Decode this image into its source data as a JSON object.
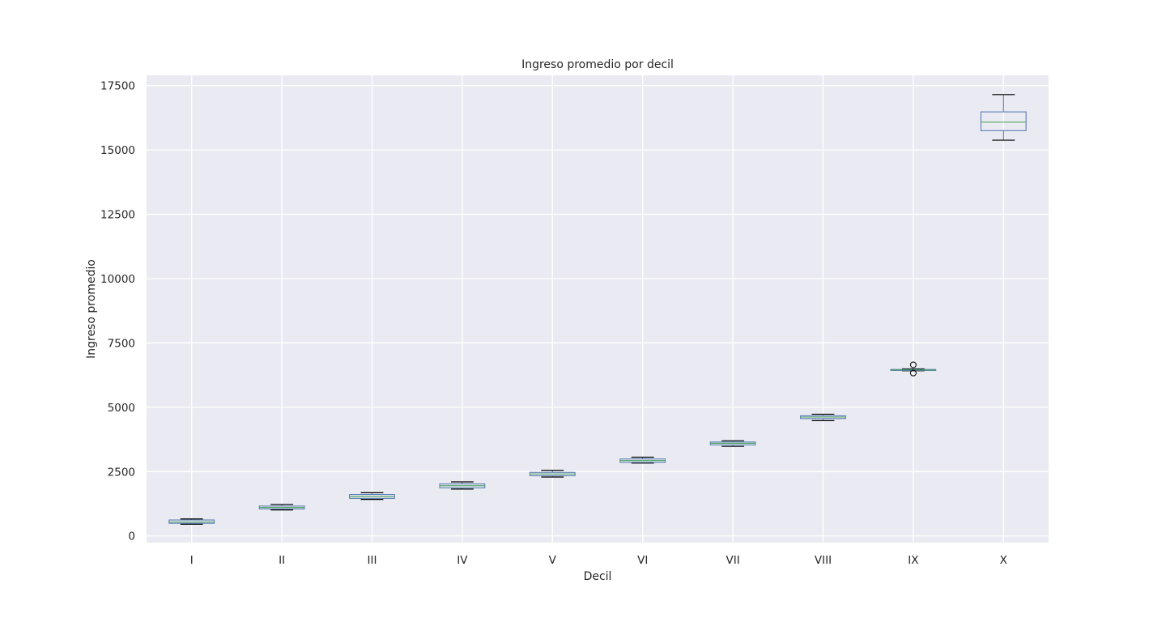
{
  "chart_data": {
    "type": "boxplot",
    "title": "Ingreso promedio por decil",
    "xlabel": "Decil",
    "ylabel": "Ingreso promedio",
    "ylim": [
      -260,
      17900
    ],
    "yticks": [
      0,
      2500,
      5000,
      7500,
      10000,
      12500,
      15000,
      17500
    ],
    "ytick_labels": [
      "0",
      "2500",
      "5000",
      "7500",
      "10000",
      "12500",
      "15000",
      "17500"
    ],
    "categories": [
      "I",
      "II",
      "III",
      "IV",
      "V",
      "VI",
      "VII",
      "VIII",
      "IX",
      "X"
    ],
    "grid": true,
    "legend": "none",
    "boxes": [
      {
        "label": "I",
        "whisker_low": 455,
        "q1": 490,
        "median": 540,
        "q3": 620,
        "whisker_high": 660,
        "outliers": []
      },
      {
        "label": "II",
        "whisker_low": 1010,
        "q1": 1050,
        "median": 1105,
        "q3": 1160,
        "whisker_high": 1225,
        "outliers": []
      },
      {
        "label": "III",
        "whisker_low": 1420,
        "q1": 1460,
        "median": 1530,
        "q3": 1610,
        "whisker_high": 1680,
        "outliers": []
      },
      {
        "label": "IV",
        "whisker_low": 1820,
        "q1": 1870,
        "median": 1950,
        "q3": 2020,
        "whisker_high": 2100,
        "outliers": []
      },
      {
        "label": "V",
        "whisker_low": 2290,
        "q1": 2340,
        "median": 2410,
        "q3": 2470,
        "whisker_high": 2550,
        "outliers": []
      },
      {
        "label": "VI",
        "whisker_low": 2830,
        "q1": 2860,
        "median": 2930,
        "q3": 2990,
        "whisker_high": 3060,
        "outliers": []
      },
      {
        "label": "VII",
        "whisker_low": 3480,
        "q1": 3540,
        "median": 3600,
        "q3": 3650,
        "whisker_high": 3700,
        "outliers": []
      },
      {
        "label": "VIII",
        "whisker_low": 4480,
        "q1": 4560,
        "median": 4620,
        "q3": 4670,
        "whisker_high": 4730,
        "outliers": []
      },
      {
        "label": "IX",
        "whisker_low": 6420,
        "q1": 6430,
        "median": 6450,
        "q3": 6470,
        "whisker_high": 6490,
        "outliers": [
          6650,
          6330
        ]
      },
      {
        "label": "X",
        "whisker_low": 15380,
        "q1": 15750,
        "median": 16080,
        "q3": 16480,
        "whisker_high": 17150,
        "outliers": []
      }
    ],
    "colors": {
      "background": "#eaeaf2",
      "grid": "#ffffff",
      "box_edge": "#4c72b0",
      "median": "#55a868",
      "whisker": "#4c72b0",
      "cap": "#000000",
      "outlier": "#000000",
      "text": "#262626"
    }
  }
}
